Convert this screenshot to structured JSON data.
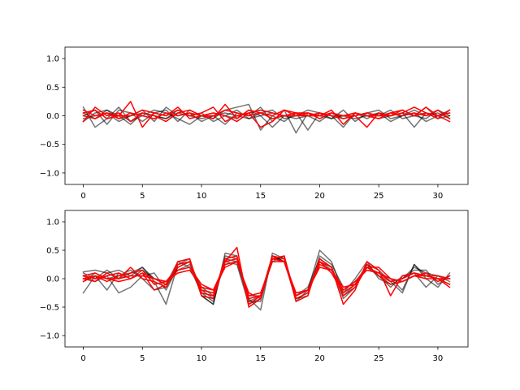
{
  "chart_data": [
    {
      "type": "line",
      "xlim": [
        -1.55,
        32.55
      ],
      "ylim": [
        -1.2,
        1.2
      ],
      "xticks": [
        0,
        5,
        10,
        15,
        20,
        25,
        30
      ],
      "yticks": [
        -1.0,
        -0.5,
        0.0,
        0.5,
        1.0
      ],
      "x": [
        0,
        1,
        2,
        3,
        4,
        5,
        6,
        7,
        8,
        9,
        10,
        11,
        12,
        13,
        14,
        15,
        16,
        17,
        18,
        19,
        20,
        21,
        22,
        23,
        24,
        25,
        26,
        27,
        28,
        29,
        30,
        31
      ],
      "series": [
        {
          "color": "#000000",
          "alpha": 0.55,
          "values": [
            0.15,
            -0.2,
            -0.05,
            0.15,
            -0.1,
            0.0,
            0.1,
            0.05,
            -0.05,
            -0.15,
            0.0,
            -0.05,
            0.1,
            0.15,
            0.2,
            -0.25,
            0.0,
            -0.1,
            0.05,
            0.0,
            -0.1,
            0.05,
            -0.05,
            0.0,
            0.05,
            0.1,
            -0.05,
            0.0,
            0.1,
            0.0,
            0.05,
            -0.05
          ]
        },
        {
          "color": "#000000",
          "alpha": 0.55,
          "values": [
            -0.1,
            0.05,
            0.1,
            -0.05,
            0.0,
            0.1,
            -0.1,
            0.15,
            0.0,
            0.05,
            -0.1,
            0.0,
            -0.15,
            0.05,
            0.0,
            0.15,
            -0.1,
            0.1,
            -0.3,
            0.05,
            0.0,
            -0.05,
            0.1,
            -0.1,
            0.05,
            0.0,
            0.1,
            -0.05,
            0.0,
            0.15,
            -0.05,
            0.0
          ]
        },
        {
          "color": "#000000",
          "alpha": 0.55,
          "values": [
            0.05,
            -0.05,
            0.1,
            0.0,
            -0.15,
            0.05,
            0.0,
            -0.05,
            0.1,
            0.0,
            0.05,
            -0.1,
            0.0,
            -0.05,
            0.1,
            0.0,
            -0.2,
            0.0,
            0.05,
            -0.25,
            0.05,
            0.0,
            -0.2,
            0.05,
            -0.05,
            0.05,
            0.0,
            0.05,
            -0.2,
            0.05,
            0.0,
            0.1
          ]
        },
        {
          "color": "#000000",
          "alpha": 0.55,
          "values": [
            0.0,
            0.1,
            -0.15,
            0.1,
            0.05,
            -0.1,
            0.05,
            0.1,
            -0.1,
            0.1,
            0.0,
            0.05,
            0.0,
            0.1,
            -0.05,
            0.05,
            0.1,
            -0.05,
            0.0,
            0.1,
            0.05,
            0.0,
            0.0,
            -0.05,
            0.0,
            0.05,
            -0.1,
            0.0,
            0.05,
            -0.1,
            0.0,
            0.05
          ]
        },
        {
          "color": "#000000",
          "alpha": 0.55,
          "values": [
            -0.05,
            0.0,
            0.05,
            -0.1,
            0.0,
            0.05,
            0.0,
            -0.05,
            0.05,
            0.0,
            -0.05,
            0.0,
            0.05,
            0.0,
            -0.05,
            0.0,
            0.05,
            0.0,
            -0.05,
            0.0,
            0.05,
            -0.05,
            0.0,
            0.05,
            0.0,
            -0.05,
            0.0,
            0.05,
            0.0,
            -0.05,
            0.1,
            0.0
          ]
        },
        {
          "color": "#ff0000",
          "alpha": 1,
          "values": [
            0.05,
            0.1,
            -0.05,
            0.0,
            0.25,
            -0.2,
            0.05,
            0.0,
            0.1,
            0.0,
            0.05,
            0.15,
            -0.1,
            0.0,
            0.05,
            -0.2,
            -0.1,
            0.1,
            0.05,
            0.0,
            0.05,
            0.0,
            -0.05,
            0.0,
            -0.2,
            0.05,
            0.0,
            0.1,
            0.0,
            0.15,
            0.0,
            0.05
          ]
        },
        {
          "color": "#ff0000",
          "alpha": 1,
          "values": [
            -0.1,
            0.15,
            0.0,
            0.05,
            -0.1,
            0.05,
            0.0,
            -0.1,
            0.05,
            0.1,
            0.0,
            -0.05,
            0.2,
            -0.05,
            0.1,
            0.05,
            0.0,
            0.1,
            0.0,
            0.05,
            -0.05,
            0.05,
            0.0,
            0.05,
            0.0,
            0.0,
            0.05,
            0.0,
            0.05,
            0.0,
            0.1,
            -0.05
          ]
        },
        {
          "color": "#ff0000",
          "alpha": 1,
          "values": [
            0.0,
            -0.05,
            0.05,
            0.0,
            0.0,
            0.1,
            0.05,
            0.0,
            0.15,
            -0.05,
            0.0,
            0.05,
            0.0,
            -0.1,
            0.05,
            0.1,
            0.05,
            0.0,
            0.05,
            0.05,
            0.0,
            0.1,
            -0.15,
            0.05,
            0.0,
            -0.05,
            0.05,
            0.1,
            0.0,
            0.05,
            -0.05,
            0.1
          ]
        },
        {
          "color": "#ff0000",
          "alpha": 1,
          "values": [
            0.1,
            0.0,
            0.05,
            -0.05,
            0.05,
            0.0,
            -0.05,
            0.05,
            0.0,
            0.05,
            0.0,
            0.0,
            0.1,
            0.05,
            0.0,
            0.05,
            -0.05,
            0.0,
            0.0,
            0.0,
            0.0,
            0.05,
            0.0,
            0.0,
            0.05,
            0.0,
            0.0,
            0.05,
            0.15,
            0.05,
            0.0,
            -0.1
          ]
        }
      ]
    },
    {
      "type": "line",
      "xlim": [
        -1.55,
        32.55
      ],
      "ylim": [
        -1.2,
        1.2
      ],
      "xticks": [
        0,
        5,
        10,
        15,
        20,
        25,
        30
      ],
      "yticks": [
        -1.0,
        -0.5,
        0.0,
        0.5,
        1.0
      ],
      "x": [
        0,
        1,
        2,
        3,
        4,
        5,
        6,
        7,
        8,
        9,
        10,
        11,
        12,
        13,
        14,
        15,
        16,
        17,
        18,
        19,
        20,
        21,
        22,
        23,
        24,
        25,
        26,
        27,
        28,
        29,
        30,
        31
      ],
      "series": [
        {
          "color": "#000000",
          "alpha": 0.55,
          "values": [
            0.12,
            0.15,
            0.1,
            0.15,
            0.05,
            0.2,
            -0.05,
            -0.45,
            0.25,
            0.35,
            -0.3,
            -0.45,
            0.4,
            0.35,
            -0.35,
            -0.55,
            0.45,
            0.35,
            -0.4,
            -0.2,
            0.5,
            0.3,
            -0.25,
            0.0,
            0.3,
            0.0,
            -0.1,
            0.0,
            0.2,
            0.1,
            0.05,
            0.0
          ]
        },
        {
          "color": "#000000",
          "alpha": 0.55,
          "values": [
            -0.25,
            0.05,
            -0.2,
            0.1,
            0.0,
            0.15,
            0.0,
            -0.1,
            0.3,
            0.2,
            -0.25,
            -0.4,
            0.35,
            0.3,
            -0.4,
            -0.3,
            0.4,
            0.3,
            -0.3,
            -0.15,
            0.35,
            0.2,
            -0.3,
            -0.1,
            0.25,
            0.05,
            -0.05,
            -0.25,
            0.25,
            0.0,
            -0.15,
            0.1
          ]
        },
        {
          "color": "#000000",
          "alpha": 0.55,
          "values": [
            0.05,
            -0.05,
            0.05,
            -0.25,
            -0.15,
            0.05,
            0.1,
            -0.2,
            0.2,
            0.3,
            -0.2,
            -0.35,
            0.3,
            0.25,
            -0.45,
            -0.35,
            0.35,
            0.35,
            -0.35,
            -0.25,
            0.3,
            0.15,
            -0.2,
            -0.05,
            0.2,
            0.05,
            -0.15,
            0.05,
            0.1,
            -0.15,
            0.05,
            -0.05
          ]
        },
        {
          "color": "#000000",
          "alpha": 0.55,
          "values": [
            -0.05,
            0.1,
            0.0,
            0.05,
            0.15,
            0.0,
            -0.2,
            -0.15,
            0.2,
            0.3,
            -0.3,
            -0.45,
            0.45,
            0.4,
            -0.4,
            -0.4,
            0.4,
            0.3,
            -0.3,
            -0.2,
            0.3,
            0.2,
            -0.35,
            -0.15,
            0.25,
            0.15,
            -0.05,
            0.0,
            0.15,
            0.15,
            -0.1,
            0.05
          ]
        },
        {
          "color": "#000000",
          "alpha": 0.55,
          "values": [
            0.1,
            0.0,
            0.15,
            0.0,
            0.1,
            0.2,
            0.0,
            -0.05,
            0.15,
            0.25,
            -0.15,
            -0.3,
            0.25,
            0.3,
            -0.3,
            -0.3,
            0.3,
            0.4,
            -0.35,
            -0.3,
            0.4,
            0.25,
            -0.15,
            -0.1,
            0.2,
            0.1,
            0.0,
            -0.2,
            0.25,
            0.05,
            0.0,
            -0.1
          ]
        },
        {
          "color": "#ff0000",
          "alpha": 1,
          "values": [
            0.0,
            0.05,
            0.0,
            0.0,
            0.2,
            0.0,
            -0.05,
            -0.15,
            0.3,
            0.35,
            -0.3,
            -0.35,
            0.3,
            0.55,
            -0.5,
            -0.35,
            0.35,
            0.4,
            -0.4,
            -0.3,
            0.35,
            0.2,
            -0.45,
            -0.2,
            0.3,
            0.15,
            -0.3,
            0.05,
            0.1,
            0.05,
            0.0,
            -0.15
          ]
        },
        {
          "color": "#ff0000",
          "alpha": 1,
          "values": [
            0.05,
            0.0,
            0.05,
            0.1,
            0.0,
            0.1,
            -0.2,
            -0.1,
            0.25,
            0.3,
            -0.25,
            -0.3,
            0.35,
            0.4,
            -0.45,
            -0.3,
            0.35,
            0.3,
            -0.35,
            -0.25,
            0.3,
            0.2,
            -0.3,
            -0.15,
            0.2,
            0.2,
            0.0,
            -0.05,
            0.05,
            0.1,
            -0.05,
            0.05
          ]
        },
        {
          "color": "#ff0000",
          "alpha": 1,
          "values": [
            -0.05,
            0.05,
            -0.05,
            0.05,
            0.1,
            0.15,
            -0.1,
            -0.05,
            0.2,
            0.3,
            -0.2,
            -0.25,
            0.3,
            0.35,
            -0.35,
            -0.3,
            0.4,
            0.35,
            -0.3,
            -0.2,
            0.3,
            0.1,
            -0.25,
            -0.1,
            0.25,
            0.05,
            -0.1,
            -0.05,
            0.05,
            0.0,
            0.0,
            -0.1
          ]
        },
        {
          "color": "#ff0000",
          "alpha": 1,
          "values": [
            0.0,
            -0.05,
            0.1,
            0.0,
            0.05,
            0.05,
            0.0,
            -0.1,
            0.15,
            0.2,
            -0.1,
            -0.2,
            0.25,
            0.3,
            -0.3,
            -0.25,
            0.3,
            0.3,
            -0.25,
            -0.2,
            0.25,
            0.15,
            -0.2,
            -0.05,
            0.15,
            0.1,
            -0.05,
            0.0,
            0.1,
            0.05,
            0.0,
            0.0
          ]
        },
        {
          "color": "#ff0000",
          "alpha": 1,
          "values": [
            0.05,
            0.1,
            0.0,
            -0.05,
            0.0,
            0.1,
            0.0,
            -0.05,
            0.1,
            0.15,
            -0.15,
            -0.2,
            0.2,
            0.3,
            -0.25,
            -0.35,
            0.35,
            0.3,
            -0.3,
            -0.2,
            0.2,
            0.15,
            -0.15,
            -0.1,
            0.2,
            0.1,
            0.0,
            -0.05,
            0.05,
            0.05,
            0.05,
            0.0
          ]
        }
      ]
    }
  ]
}
